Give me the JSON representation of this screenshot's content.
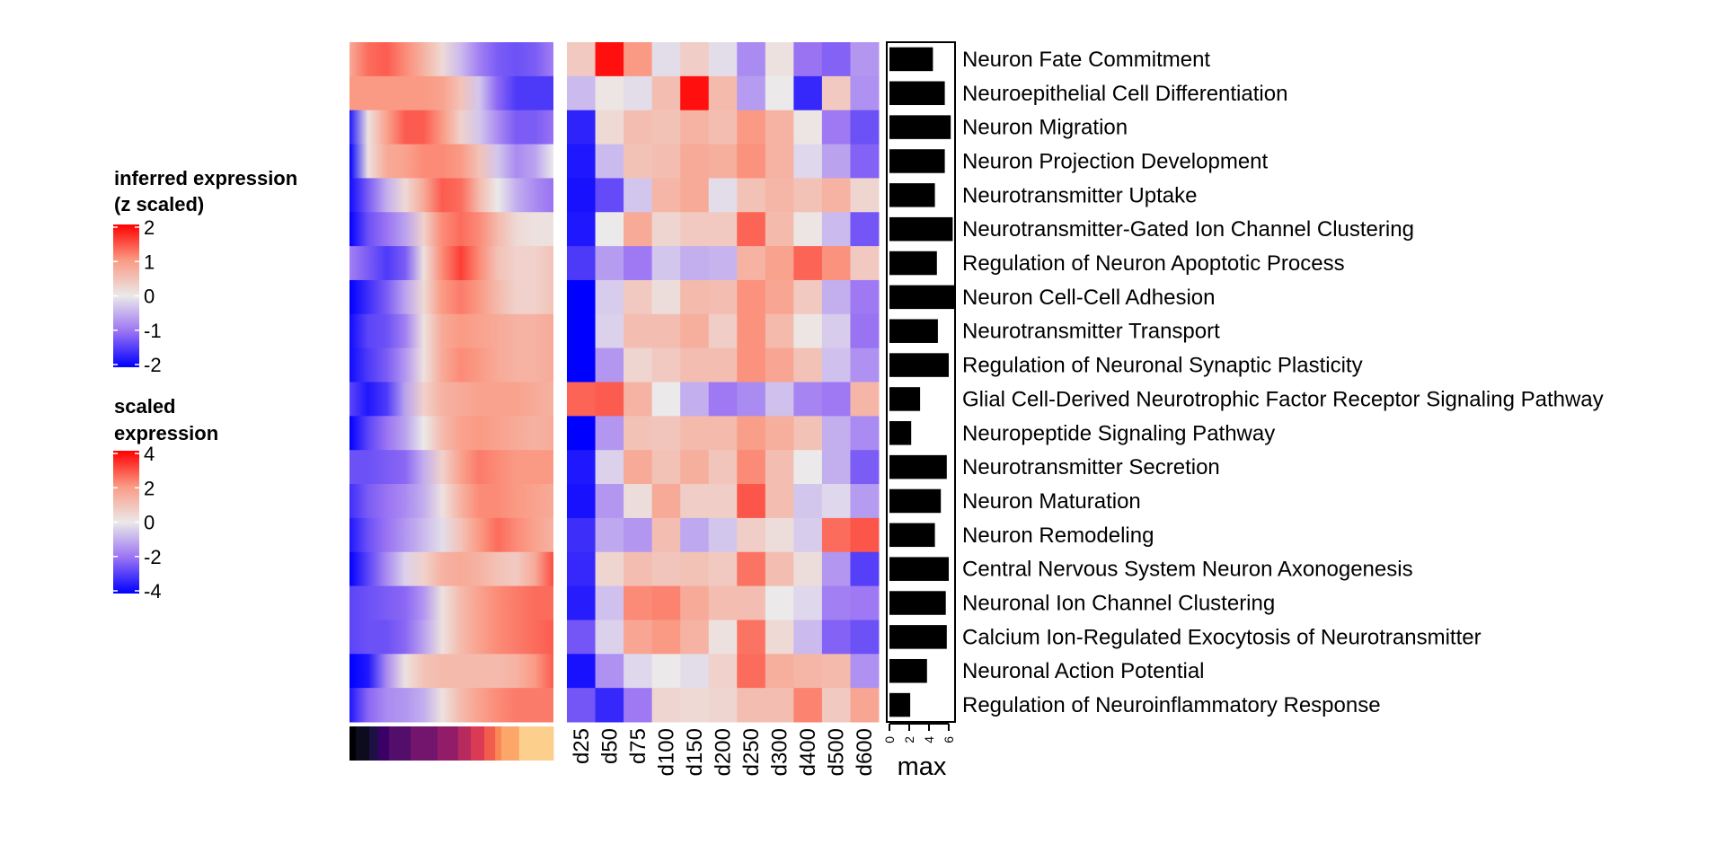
{
  "chart_data": {
    "type": "heatmap",
    "rows": [
      "Neuron Fate Commitment",
      "Neuroepithelial Cell Differentiation",
      "Neuron Migration",
      "Neuron Projection Development",
      "Neurotransmitter Uptake",
      "Neurotransmitter-Gated Ion Channel Clustering",
      "Regulation of Neuron Apoptotic Process",
      "Neuron Cell-Cell Adhesion",
      "Neurotransmitter Transport",
      "Regulation of Neuronal Synaptic Plasticity",
      "Glial Cell-Derived Neurotrophic Factor Receptor Signaling Pathway",
      "Neuropeptide Signaling Pathway",
      "Neurotransmitter Secretion",
      "Neuron Maturation",
      "Neuron Remodeling",
      "Central Nervous System Neuron Axonogenesis",
      "Neuronal Ion Channel Clustering",
      "Calcium Ion-Regulated Exocytosis of Neurotransmitter",
      "Neuronal Action Potential",
      "Regulation of Neuroinflammatory Response"
    ],
    "inferred_expression": {
      "legend_title": [
        "inferred expression",
        "(z scaled)"
      ],
      "range": [
        -2,
        2
      ],
      "ticks": [
        "2",
        "1",
        "0",
        "-1",
        "-2"
      ],
      "tick_values": [
        2,
        1,
        0,
        -1,
        -2
      ],
      "values": [
        [
          0.8,
          1.3,
          1.4,
          1.1,
          0.7,
          0.2,
          -0.4,
          -0.9,
          -1.2,
          -1.3,
          -1.2,
          -0.9
        ],
        [
          1.0,
          1.0,
          1.0,
          1.0,
          1.0,
          0.9,
          0.5,
          -0.3,
          -1.1,
          -1.5,
          -1.5,
          -1.5
        ],
        [
          -1.8,
          0.1,
          0.9,
          1.4,
          1.4,
          1.0,
          0.3,
          -0.3,
          -0.8,
          -1.2,
          -1.2,
          -1.0
        ],
        [
          -2.0,
          0.1,
          0.8,
          0.9,
          1.1,
          1.1,
          1.0,
          0.5,
          -0.3,
          -0.8,
          -0.6,
          0.0
        ],
        [
          -1.9,
          -1.2,
          -0.5,
          0.2,
          0.8,
          1.4,
          1.3,
          0.6,
          0.0,
          -0.5,
          -0.8,
          -1.0
        ],
        [
          -2.0,
          -1.3,
          -1.0,
          -0.6,
          0.3,
          1.1,
          1.3,
          1.1,
          0.6,
          0.2,
          0.1,
          0.1
        ],
        [
          -0.9,
          -1.2,
          -1.5,
          -1.2,
          0.1,
          1.1,
          1.6,
          1.1,
          0.5,
          0.3,
          0.3,
          0.5
        ],
        [
          -2.0,
          -1.6,
          -1.2,
          -0.6,
          0.2,
          1.0,
          1.2,
          1.0,
          0.6,
          0.3,
          0.3,
          0.5
        ],
        [
          -1.9,
          -1.4,
          -1.3,
          -0.9,
          0.1,
          0.8,
          1.0,
          0.9,
          0.8,
          0.7,
          0.7,
          0.8
        ],
        [
          -1.9,
          -1.5,
          -1.2,
          -0.7,
          0.1,
          0.8,
          1.1,
          1.0,
          0.8,
          0.7,
          0.7,
          0.8
        ],
        [
          -1.4,
          -1.8,
          -1.5,
          -0.6,
          0.3,
          0.7,
          0.8,
          0.9,
          0.9,
          0.9,
          0.8,
          0.7
        ],
        [
          -2.0,
          -1.4,
          -1.0,
          -0.6,
          0.0,
          0.6,
          0.9,
          1.0,
          0.9,
          0.8,
          0.7,
          0.8
        ],
        [
          -1.3,
          -1.3,
          -1.2,
          -1.1,
          -0.5,
          0.3,
          0.9,
          1.2,
          1.1,
          1.0,
          1.0,
          1.0
        ],
        [
          -1.6,
          -1.2,
          -1.0,
          -0.8,
          -0.5,
          0.1,
          0.7,
          1.1,
          1.1,
          1.0,
          0.9,
          0.8
        ],
        [
          -1.8,
          -1.3,
          -1.0,
          -0.7,
          -0.4,
          -0.1,
          0.5,
          1.0,
          1.3,
          1.1,
          0.9,
          0.7
        ],
        [
          -2.0,
          -1.4,
          -0.8,
          -0.2,
          0.3,
          0.7,
          0.8,
          0.7,
          0.5,
          0.4,
          0.8,
          1.5
        ],
        [
          -1.4,
          -1.3,
          -1.2,
          -1.1,
          -0.7,
          0.1,
          0.6,
          0.9,
          1.1,
          1.2,
          1.3,
          1.3
        ],
        [
          -1.4,
          -1.3,
          -1.3,
          -1.1,
          -0.6,
          0.1,
          0.6,
          0.9,
          1.1,
          1.2,
          1.3,
          1.4
        ],
        [
          -2.0,
          -1.8,
          -0.8,
          0.1,
          0.5,
          0.6,
          0.6,
          0.6,
          0.6,
          0.7,
          1.0,
          1.4
        ],
        [
          -1.8,
          -1.1,
          -0.8,
          -0.7,
          -0.5,
          0.1,
          0.6,
          0.9,
          1.1,
          1.2,
          1.2,
          1.2
        ]
      ]
    },
    "pseudotime_annotation_colors": [
      "#000004",
      "#0c0c1e",
      "#1e0f44",
      "#3b0066",
      "#530d6a",
      "#73156d",
      "#931c69",
      "#b62a5e",
      "#db3a54",
      "#f25c4d",
      "#fa8556",
      "#fca66a",
      "#fcd08c"
    ],
    "scaled_expression": {
      "legend_title": [
        "scaled",
        "expression"
      ],
      "range": [
        -4,
        4
      ],
      "ticks": [
        "4",
        "2",
        "0",
        "-2",
        "-4"
      ],
      "tick_values": [
        4,
        2,
        0,
        -2,
        -4
      ],
      "columns": [
        "d25",
        "d50",
        "d75",
        "d100",
        "d150",
        "d200",
        "d250",
        "d300",
        "d400",
        "d500",
        "d600"
      ],
      "values": [
        [
          0.8,
          3.8,
          2.0,
          -0.2,
          0.7,
          -0.2,
          -1.6,
          0.2,
          -2.0,
          -2.3,
          -1.4
        ],
        [
          -0.8,
          0.1,
          -0.2,
          1.1,
          3.8,
          1.2,
          -1.3,
          0.0,
          -3.3,
          0.8,
          -1.5
        ],
        [
          -3.4,
          0.4,
          1.1,
          1.0,
          1.4,
          1.1,
          2.0,
          1.4,
          0.1,
          -1.9,
          -2.6
        ],
        [
          -3.6,
          -0.8,
          1.0,
          1.1,
          1.6,
          1.5,
          2.1,
          1.4,
          -0.3,
          -1.2,
          -2.3
        ],
        [
          -3.7,
          -2.7,
          -0.6,
          1.3,
          1.6,
          -0.2,
          1.0,
          1.3,
          1.0,
          1.4,
          0.5
        ],
        [
          -3.6,
          0.0,
          1.6,
          0.5,
          0.8,
          0.8,
          2.7,
          1.2,
          0.1,
          -0.8,
          -2.5
        ],
        [
          -3.0,
          -1.3,
          -1.9,
          -0.6,
          -1.0,
          -0.9,
          1.4,
          1.8,
          2.7,
          2.1,
          0.8
        ],
        [
          -4.0,
          -0.5,
          0.8,
          0.3,
          1.2,
          1.1,
          2.1,
          1.7,
          0.8,
          -1.0,
          -1.9
        ],
        [
          -4.0,
          -0.4,
          1.1,
          1.1,
          1.5,
          0.7,
          2.1,
          1.2,
          0.1,
          -0.5,
          -2.0
        ],
        [
          -4.0,
          -1.4,
          0.5,
          0.8,
          1.1,
          1.1,
          2.1,
          1.7,
          1.0,
          -0.7,
          -1.5
        ],
        [
          2.7,
          2.8,
          1.4,
          0.0,
          -1.0,
          -1.9,
          -1.6,
          -0.7,
          -1.7,
          -1.9,
          1.3
        ],
        [
          -4.0,
          -1.4,
          1.0,
          0.9,
          1.2,
          1.2,
          1.9,
          1.5,
          1.0,
          -1.0,
          -1.6
        ],
        [
          -3.6,
          -0.4,
          1.6,
          1.0,
          1.5,
          0.9,
          2.2,
          1.1,
          0.0,
          -1.0,
          -2.4
        ],
        [
          -3.7,
          -1.4,
          0.3,
          1.6,
          0.7,
          0.7,
          2.9,
          1.1,
          -0.6,
          -0.3,
          -1.3
        ],
        [
          -3.2,
          -1.1,
          -1.4,
          1.1,
          -1.1,
          -0.6,
          0.7,
          0.3,
          -0.5,
          2.6,
          2.9
        ],
        [
          -3.3,
          0.5,
          1.1,
          0.9,
          1.0,
          0.8,
          2.5,
          1.1,
          0.3,
          -1.4,
          -2.9
        ],
        [
          -3.5,
          -0.7,
          2.2,
          2.3,
          1.6,
          1.1,
          1.1,
          0.0,
          -0.3,
          -1.8,
          -1.9
        ],
        [
          -2.5,
          -0.4,
          1.7,
          2.0,
          1.4,
          0.2,
          2.5,
          0.4,
          -0.8,
          -2.3,
          -2.6
        ],
        [
          -3.7,
          -1.5,
          -0.3,
          0.0,
          -0.2,
          0.6,
          2.6,
          1.5,
          1.3,
          1.2,
          -1.5
        ],
        [
          -2.5,
          -3.3,
          -1.9,
          0.5,
          0.4,
          0.5,
          1.1,
          1.1,
          2.3,
          0.8,
          1.7
        ]
      ]
    },
    "max_bar": {
      "xlabel": "max",
      "ticks": [
        "0",
        "2",
        "4",
        "6"
      ],
      "tick_values": [
        0,
        2,
        4,
        6
      ],
      "xlim": [
        0,
        6.7
      ],
      "values": [
        4.4,
        5.6,
        6.2,
        5.6,
        4.6,
        6.4,
        4.8,
        6.6,
        4.9,
        6.0,
        3.1,
        2.2,
        5.8,
        5.2,
        4.6,
        6.0,
        5.7,
        5.8,
        3.8,
        2.1
      ],
      "bar_color": "#000000"
    },
    "colors": {
      "low": "#0000ff",
      "mid": "#ebe9e9",
      "high": "#ff0000"
    }
  }
}
